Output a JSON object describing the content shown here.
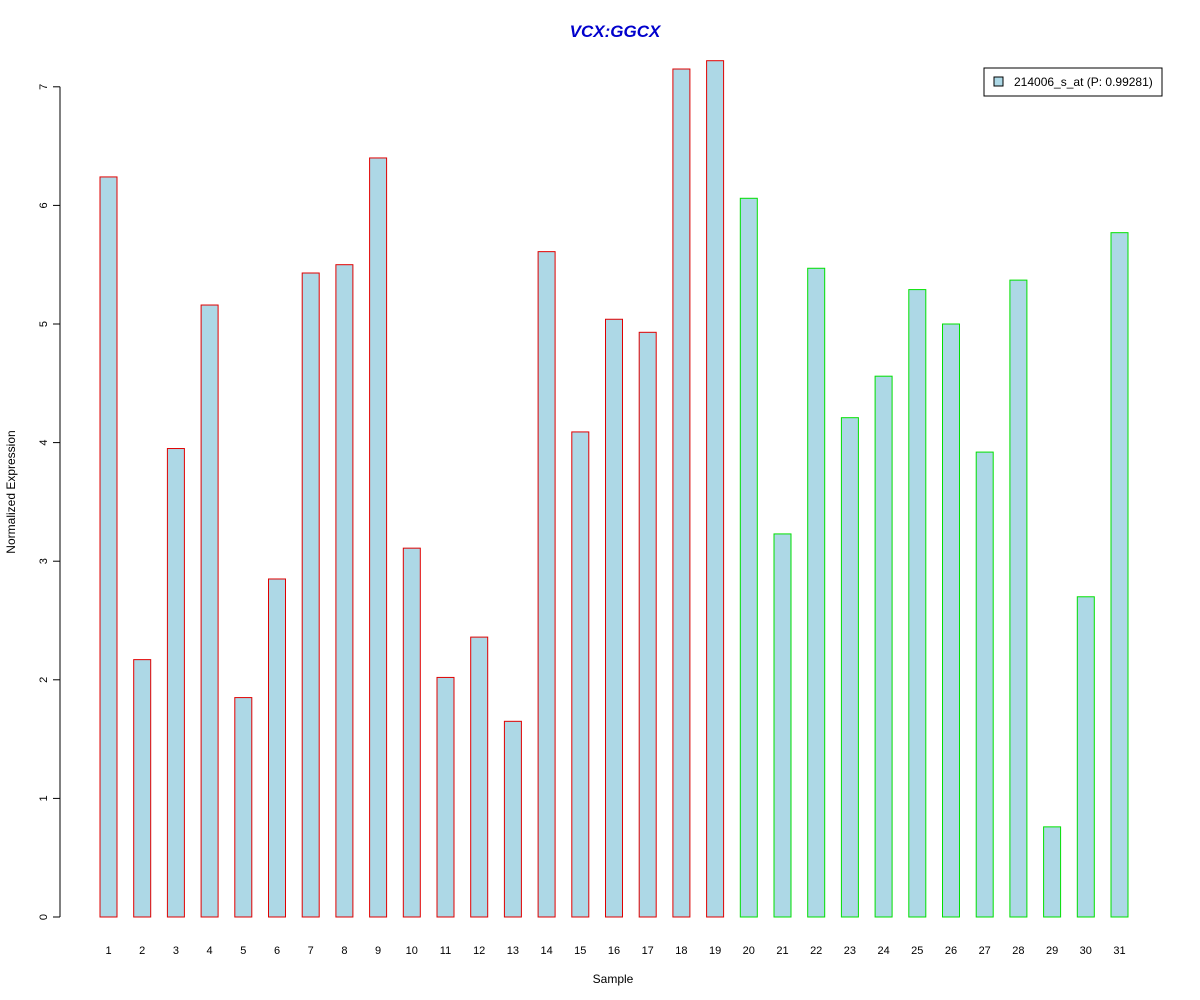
{
  "chart_data": {
    "type": "bar",
    "title": "VCX:GGCX",
    "xlabel": "Sample",
    "ylabel": "Normalized Expression",
    "categories": [
      "1",
      "2",
      "3",
      "4",
      "5",
      "6",
      "7",
      "8",
      "9",
      "10",
      "11",
      "12",
      "13",
      "14",
      "15",
      "16",
      "17",
      "18",
      "19",
      "20",
      "21",
      "22",
      "23",
      "24",
      "25",
      "26",
      "27",
      "28",
      "29",
      "30",
      "31"
    ],
    "series": [
      {
        "name": "214006_s_at (P: 0.99281)",
        "values": [
          6.24,
          2.17,
          3.95,
          5.16,
          1.85,
          2.85,
          5.43,
          5.5,
          6.4,
          3.11,
          2.02,
          2.36,
          1.65,
          5.61,
          4.09,
          5.04,
          4.93,
          7.15,
          7.22,
          6.06,
          3.23,
          5.47,
          4.21,
          4.56,
          5.29,
          5.0,
          3.92,
          5.37,
          0.76,
          2.7,
          5.77
        ]
      }
    ],
    "group_border_colors": [
      "#e00000",
      "#e00000",
      "#e00000",
      "#e00000",
      "#e00000",
      "#e00000",
      "#e00000",
      "#e00000",
      "#e00000",
      "#e00000",
      "#e00000",
      "#e00000",
      "#e00000",
      "#e00000",
      "#e00000",
      "#e00000",
      "#e00000",
      "#e00000",
      "#e00000",
      "#00e000",
      "#00e000",
      "#00e000",
      "#00e000",
      "#00e000",
      "#00e000",
      "#00e000",
      "#00e000",
      "#00e000",
      "#00e000",
      "#00e000",
      "#00e000"
    ],
    "bar_fill": "#add8e6",
    "title_color": "#0000cc",
    "yticks": [
      0,
      1,
      2,
      3,
      4,
      5,
      6,
      7
    ],
    "ylim": [
      0,
      7.25
    ],
    "legend_position": "top-right",
    "grid": false
  }
}
